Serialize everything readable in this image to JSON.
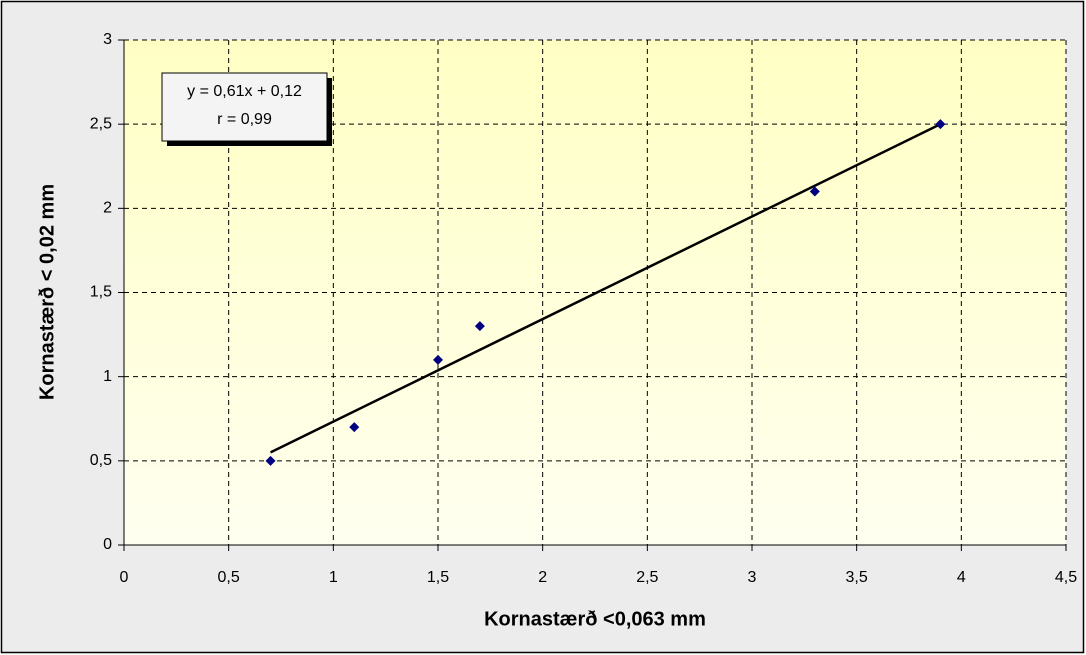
{
  "chart_data": {
    "type": "scatter",
    "x_label": "Kornastærð <0,063 mm",
    "y_label": "Kornastærð < 0,02 mm",
    "annotation": [
      "y = 0,61x + 0,12",
      "r = 0,99"
    ],
    "series": [
      {
        "color": "#000080",
        "x": [
          0.7,
          1.1,
          1.5,
          1.7,
          3.3,
          3.9
        ],
        "values": [
          0.5,
          0.7,
          1.1,
          1.3,
          2.1,
          2.5
        ]
      }
    ],
    "trendline": {
      "color": "#000000",
      "x": [
        0.7,
        3.9
      ],
      "values": [
        0.55,
        2.5
      ]
    },
    "xlim": [
      0,
      4.5
    ],
    "xticks": [
      0,
      {
        "value": 0.5,
        "label": "0,5"
      },
      1,
      {
        "value": 1.5,
        "label": "1,5"
      },
      2,
      {
        "value": 2.5,
        "label": "2,5"
      },
      3,
      {
        "value": 3.5,
        "label": "3,5"
      },
      4,
      {
        "value": 4.5,
        "label": "4,5"
      }
    ],
    "ylim": [
      0,
      3
    ],
    "yticks": [
      0,
      {
        "value": 0.5,
        "label": "0,5"
      },
      1,
      {
        "value": 1.5,
        "label": "1,5"
      },
      2,
      {
        "value": 2.5,
        "label": "2,5"
      },
      3
    ],
    "grid": true
  }
}
